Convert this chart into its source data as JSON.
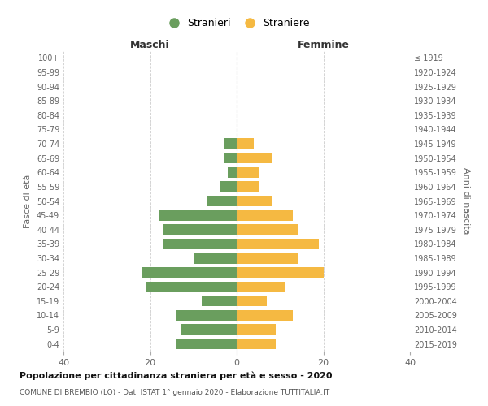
{
  "age_groups": [
    "100+",
    "95-99",
    "90-94",
    "85-89",
    "80-84",
    "75-79",
    "70-74",
    "65-69",
    "60-64",
    "55-59",
    "50-54",
    "45-49",
    "40-44",
    "35-39",
    "30-34",
    "25-29",
    "20-24",
    "15-19",
    "10-14",
    "5-9",
    "0-4"
  ],
  "birth_years": [
    "≤ 1919",
    "1920-1924",
    "1925-1929",
    "1930-1934",
    "1935-1939",
    "1940-1944",
    "1945-1949",
    "1950-1954",
    "1955-1959",
    "1960-1964",
    "1965-1969",
    "1970-1974",
    "1975-1979",
    "1980-1984",
    "1985-1989",
    "1990-1994",
    "1995-1999",
    "2000-2004",
    "2005-2009",
    "2010-2014",
    "2015-2019"
  ],
  "maschi": [
    0,
    0,
    0,
    0,
    0,
    0,
    3,
    3,
    2,
    4,
    7,
    18,
    17,
    17,
    10,
    22,
    21,
    8,
    14,
    13,
    14
  ],
  "femmine": [
    0,
    0,
    0,
    0,
    0,
    0,
    4,
    8,
    5,
    5,
    8,
    13,
    14,
    19,
    14,
    20,
    11,
    7,
    13,
    9,
    9
  ],
  "color_maschi": "#6a9e5e",
  "color_femmine": "#f5b942",
  "xlim": 40,
  "title": "Popolazione per cittadinanza straniera per età e sesso - 2020",
  "subtitle": "COMUNE DI BREMBIO (LO) - Dati ISTAT 1° gennaio 2020 - Elaborazione TUTTITALIA.IT",
  "label_maschi": "Stranieri",
  "label_femmine": "Straniere",
  "label_left": "Maschi",
  "label_right": "Femmine",
  "ylabel_left": "Fasce di età",
  "ylabel_right": "Anni di nascita",
  "background_color": "#ffffff",
  "grid_color": "#cccccc"
}
